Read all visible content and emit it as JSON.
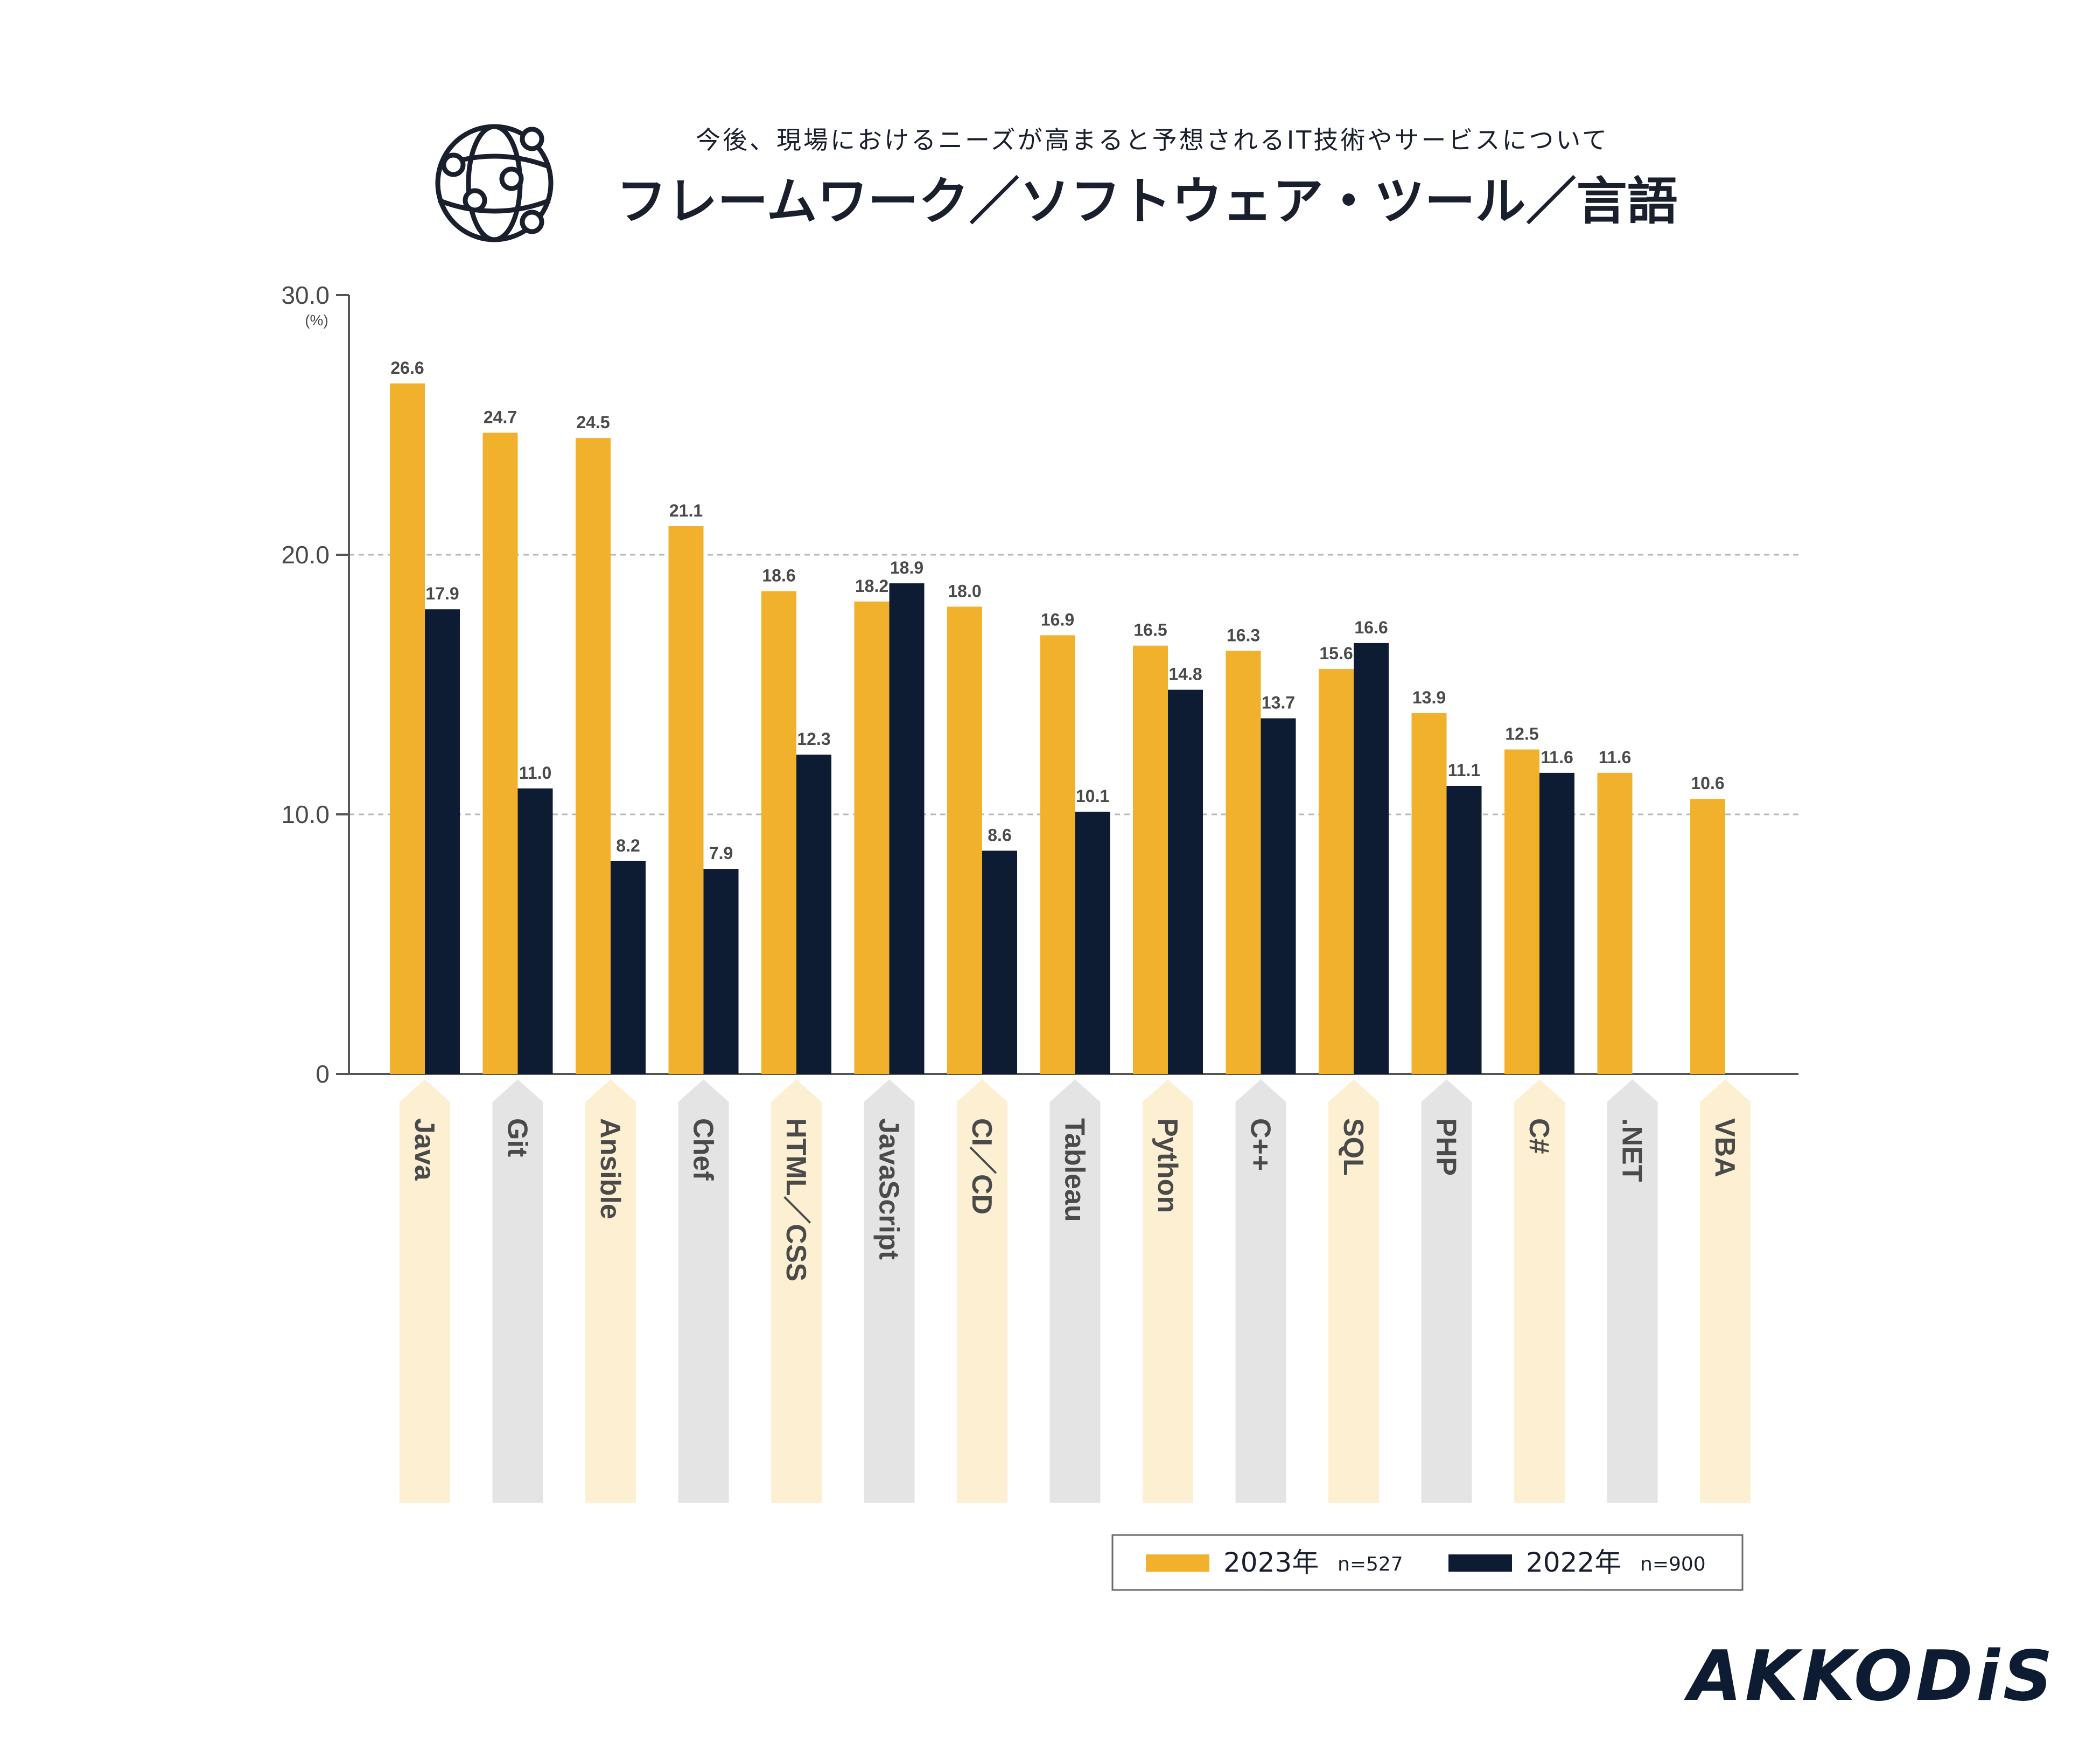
{
  "header": {
    "subtitle": "今後、現場におけるニーズが高まると予想されるIT技術やサービスについて",
    "title": "フレームワーク／ソフトウェア・ツール／言語"
  },
  "brand": {
    "logo_text": "AKKODiS"
  },
  "colors": {
    "series_2023": "#F2B12C",
    "series_2022": "#0D1B33",
    "arrow_odd": "#FCEFD2",
    "arrow_even": "#E4E4E4",
    "grid": "#B8B8B8",
    "axis": "#555555",
    "text": "#1A1F2E",
    "label": "#4A4A4A"
  },
  "chart_data": {
    "type": "bar",
    "ylabel": "(%)",
    "ylim": [
      0,
      30
    ],
    "yticks": [
      "0",
      "10.0",
      "20.0",
      "30.0"
    ],
    "ytick_values": [
      0,
      10,
      20,
      30
    ],
    "gridlines": [
      10,
      20
    ],
    "categories": [
      "Java",
      "Git",
      "Ansible",
      "Chef",
      "HTML／CSS",
      "JavaScript",
      "CI／CD",
      "Tableau",
      "Python",
      "C++",
      "SQL",
      "PHP",
      "C#",
      ".NET",
      "VBA"
    ],
    "series": [
      {
        "name": "2023年",
        "n_label": "n=527",
        "values": [
          26.6,
          24.7,
          24.5,
          21.1,
          18.6,
          18.2,
          18.0,
          16.9,
          16.5,
          16.3,
          15.6,
          13.9,
          12.5,
          11.6,
          10.6
        ],
        "labels": [
          "26.6",
          "24.7",
          "24.5",
          "21.1",
          "18.6",
          "18.2",
          "18.0",
          "16.9",
          "16.5",
          "16.3",
          "15.6",
          "13.9",
          "12.5",
          "11.6",
          "10.6"
        ]
      },
      {
        "name": "2022年",
        "n_label": "n=900",
        "values": [
          17.9,
          11.0,
          8.2,
          7.9,
          12.3,
          18.9,
          8.6,
          10.1,
          14.8,
          13.7,
          16.6,
          11.1,
          11.6,
          null,
          null
        ],
        "labels": [
          "17.9",
          "11.0",
          "8.2",
          "7.9",
          "12.3",
          "18.9",
          "8.6",
          "10.1",
          "14.8",
          "13.7",
          "16.6",
          "11.1",
          "11.6",
          null,
          null
        ]
      }
    ],
    "legend_position": "bottom-right"
  }
}
